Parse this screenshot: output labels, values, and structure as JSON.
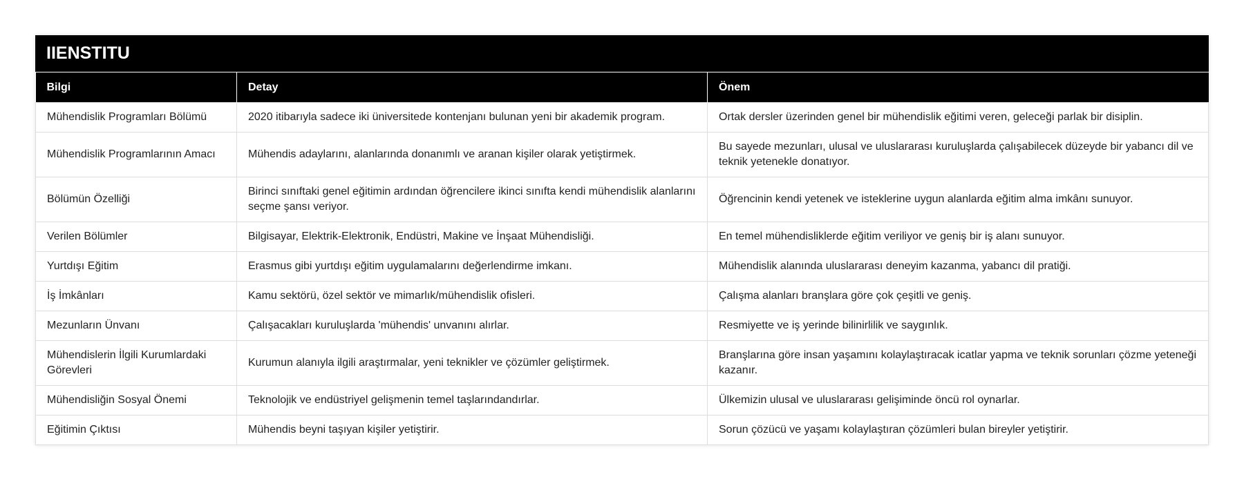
{
  "title": "IIENSTITU",
  "columns": [
    "Bilgi",
    "Detay",
    "Önem"
  ],
  "rows": [
    [
      "Mühendislik Programları Bölümü",
      "2020 itibarıyla sadece iki üniversitede kontenjanı bulunan yeni bir akademik program.",
      "Ortak dersler üzerinden genel bir mühendislik eğitimi veren, geleceği parlak bir disiplin."
    ],
    [
      "Mühendislik Programlarının Amacı",
      "Mühendis adaylarını, alanlarında donanımlı ve aranan kişiler olarak yetiştirmek.",
      "Bu sayede mezunları, ulusal ve uluslararası kuruluşlarda çalışabilecek düzeyde bir yabancı dil ve teknik yetenekle donatıyor."
    ],
    [
      "Bölümün Özelliği",
      "Birinci sınıftaki genel eğitimin ardından öğrencilere ikinci sınıfta kendi mühendislik alanlarını seçme şansı veriyor.",
      "Öğrencinin kendi yetenek ve isteklerine uygun alanlarda eğitim alma imkânı sunuyor."
    ],
    [
      "Verilen Bölümler",
      "Bilgisayar, Elektrik-Elektronik, Endüstri, Makine ve İnşaat Mühendisliği.",
      "En temel mühendisliklerde eğitim veriliyor ve geniş bir iş alanı sunuyor."
    ],
    [
      "Yurtdışı Eğitim",
      "Erasmus gibi yurtdışı eğitim uygulamalarını değerlendirme imkanı.",
      "Mühendislik alanında uluslararası deneyim kazanma, yabancı dil pratiği."
    ],
    [
      "İş İmkânları",
      "Kamu sektörü, özel sektör ve mimarlık/mühendislik ofisleri.",
      "Çalışma alanları branşlara göre çok çeşitli ve geniş."
    ],
    [
      "Mezunların Ünvanı",
      "Çalışacakları kuruluşlarda 'mühendis' unvanını alırlar.",
      "Resmiyette ve iş yerinde bilinirlilik ve saygınlık."
    ],
    [
      "Mühendislerin İlgili Kurumlardaki Görevleri",
      "Kurumun alanıyla ilgili araştırmalar, yeni teknikler ve çözümler geliştirmek.",
      "Branşlarına göre insan yaşamını kolaylaştıracak icatlar yapma ve teknik sorunları çözme yeteneği kazanır."
    ],
    [
      "Mühendisliğin Sosyal Önemi",
      "Teknolojik ve endüstriyel gelişmenin temel taşlarındandırlar.",
      "Ülkemizin ulusal ve uluslararası gelişiminde öncü rol oynarlar."
    ],
    [
      "Eğitimin Çıktısı",
      "Mühendis beyni taşıyan kişiler yetiştirir.",
      "Sorun çözücü ve yaşamı kolaylaştıran çözümleri bulan bireyler yetiştirir."
    ]
  ]
}
